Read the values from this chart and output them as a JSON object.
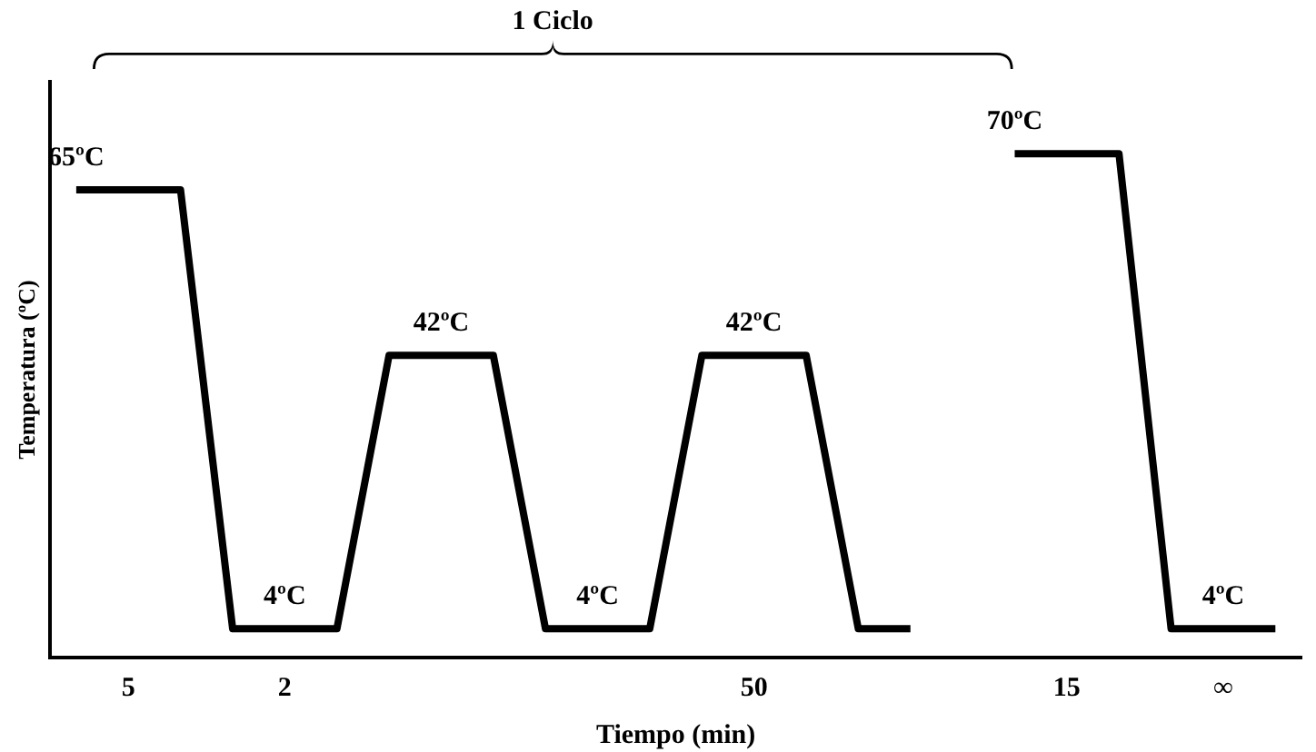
{
  "chart_data": {
    "type": "line",
    "xlabel": "Tiempo (min)",
    "ylabel": "Temperatura (ºC)",
    "annotations": [
      "1 Ciclo"
    ],
    "categories": [
      null,
      "5",
      null,
      null,
      "2",
      null,
      null,
      null,
      null,
      null,
      null,
      null,
      null,
      "50",
      null,
      null,
      null,
      null,
      null,
      "15",
      null,
      null,
      "∞",
      null
    ],
    "series": [
      {
        "color": "#000000",
        "values": [
          65,
          65,
          65,
          4,
          4,
          4,
          42,
          42,
          42,
          4,
          4,
          4,
          42,
          42,
          42,
          4,
          4,
          null,
          70,
          70,
          70,
          4,
          4,
          4
        ],
        "value_labels": [
          "65ºC",
          null,
          null,
          null,
          "4ºC",
          null,
          null,
          "42ºC",
          null,
          null,
          "4ºC",
          null,
          null,
          "42ºC",
          null,
          null,
          null,
          null,
          "70ºC",
          null,
          null,
          null,
          "4ºC",
          null
        ]
      }
    ],
    "legend": false,
    "grid": false,
    "tick_labels": "x",
    "marker": "none",
    "line_style": "solid"
  }
}
